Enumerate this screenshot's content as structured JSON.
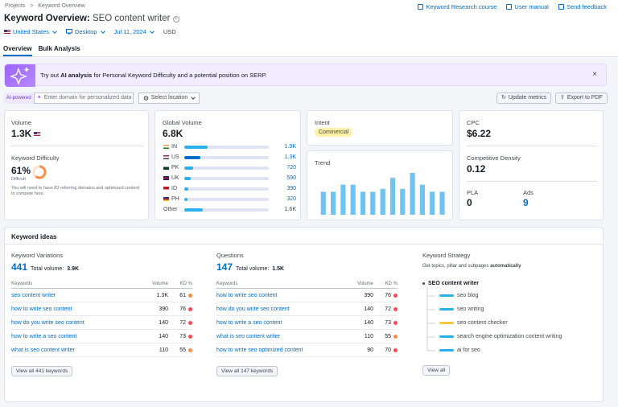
{
  "breadcrumbs": [
    "Projects",
    ">",
    "Keyword Overview"
  ],
  "top_links": [
    {
      "label": "Keyword Research course",
      "icon": "graduation-icon"
    },
    {
      "label": "User manual",
      "icon": "book-icon"
    },
    {
      "label": "Send feedback",
      "icon": "megaphone-icon"
    }
  ],
  "header": {
    "title": "Keyword Overview:",
    "keyword": "SEO content writer"
  },
  "filters": {
    "country": "United States",
    "device": "Desktop",
    "date": "Jul 11, 2024",
    "currency": "USD"
  },
  "tabs": [
    "Overview",
    "Bulk Analysis"
  ],
  "banner": {
    "prefix": "Try out ",
    "bold": "AI analysis",
    "suffix": " for Personal Keyword Difficulty and a potential position on SERP.",
    "close": "×"
  },
  "ai_bar": {
    "pill": "AI-powered",
    "domain_placeholder": "Enter domain for personalized data",
    "location": "Select location"
  },
  "actions": {
    "update": "Update metrics",
    "export": "Export to PDF"
  },
  "volume": {
    "label": "Volume",
    "value": "1.3K"
  },
  "difficulty": {
    "label": "Keyword Difficulty",
    "value": "61%",
    "level": "Difficult",
    "percent": 61,
    "note": "You will need to have 83 referring domains and optimized content to compete here."
  },
  "global_volume": {
    "label": "Global Volume",
    "value": "6.8K",
    "rows": [
      {
        "code": "IN",
        "value": "1.9K",
        "fill": 0.28,
        "flag": [
          "#ff9933",
          "#ffffff",
          "#138808"
        ]
      },
      {
        "code": "US",
        "value": "1.3K",
        "fill": 0.19,
        "flag": [
          "#b22234",
          "#ffffff",
          "#3c3b6e"
        ]
      },
      {
        "code": "PK",
        "value": "720",
        "fill": 0.1,
        "flag": [
          "#ffffff",
          "#01411c",
          "#01411c"
        ]
      },
      {
        "code": "UK",
        "value": "590",
        "fill": 0.08,
        "flag": [
          "#012169",
          "#c8102e",
          "#012169"
        ]
      },
      {
        "code": "ID",
        "value": "390",
        "fill": 0.05,
        "flag": [
          "#ce1126",
          "#ce1126",
          "#ffffff"
        ]
      },
      {
        "code": "PH",
        "value": "320",
        "fill": 0.04,
        "flag": [
          "#0038a8",
          "#ce1126",
          "#fcd116"
        ]
      }
    ],
    "other": {
      "label": "Other",
      "value": "1.6K",
      "fill": 0.22
    }
  },
  "intent": {
    "label": "Intent",
    "value": "Commercial"
  },
  "trend": {
    "label": "Trend",
    "values": [
      0.55,
      0.55,
      0.72,
      0.72,
      0.55,
      0.55,
      0.62,
      0.88,
      0.62,
      1.0,
      0.72,
      0.55,
      0.55
    ]
  },
  "cpc": {
    "label": "CPC",
    "value": "$6.22"
  },
  "competitive_density": {
    "label": "Competitive Density",
    "value": "0.12"
  },
  "pla": {
    "label": "PLA",
    "value": "0"
  },
  "ads": {
    "label": "Ads",
    "value": "9"
  },
  "keyword_ideas": {
    "title": "Keyword ideas",
    "variations": {
      "title": "Keyword Variations",
      "count": "441",
      "total_label": "Total volume:",
      "total": "3.9K",
      "headers": [
        "Keywords",
        "Volume",
        "KD %"
      ],
      "rows": [
        {
          "kw": "seo content writer",
          "vol": "1.3K",
          "kd": "61",
          "color": "#ff8c43"
        },
        {
          "kw": "how to write seo content",
          "vol": "390",
          "kd": "76",
          "color": "#ff4953"
        },
        {
          "kw": "how do you write seo content",
          "vol": "140",
          "kd": "72",
          "color": "#ff4953"
        },
        {
          "kw": "how to write a seo content",
          "vol": "140",
          "kd": "73",
          "color": "#ff4953"
        },
        {
          "kw": "what is seo content writer",
          "vol": "110",
          "kd": "55",
          "color": "#ff8c43"
        }
      ],
      "view_all": "View all 441 keywords"
    },
    "questions": {
      "title": "Questions",
      "count": "147",
      "total_label": "Total volume:",
      "total": "1.5K",
      "headers": [
        "Keywords",
        "Volume",
        "KD %"
      ],
      "rows": [
        {
          "kw": "how to write seo content",
          "vol": "390",
          "kd": "76",
          "color": "#ff4953"
        },
        {
          "kw": "how do you write seo content",
          "vol": "140",
          "kd": "72",
          "color": "#ff4953"
        },
        {
          "kw": "how to write a seo content",
          "vol": "140",
          "kd": "73",
          "color": "#ff4953"
        },
        {
          "kw": "what is seo content writer",
          "vol": "110",
          "kd": "55",
          "color": "#ff8c43"
        },
        {
          "kw": "how to write seo optimized content",
          "vol": "90",
          "kd": "70",
          "color": "#ff4953"
        }
      ],
      "view_all": "View all 147 keywords"
    },
    "strategy": {
      "title": "Keyword Strategy",
      "desc_prefix": "Get topics, pillar and subpages ",
      "desc_bold": "automatically",
      "root": "SEO content writer",
      "items": [
        {
          "label": "seo blog",
          "color": "#2bb0ef"
        },
        {
          "label": "seo writing",
          "color": "#2bb0ef"
        },
        {
          "label": "seo content checker",
          "color": "#f3c83f"
        },
        {
          "label": "search engine optimization content writing",
          "color": "#2bb0ef"
        },
        {
          "label": "ai for seo",
          "color": "#2bb0ef"
        }
      ],
      "view_all": "View all"
    }
  }
}
